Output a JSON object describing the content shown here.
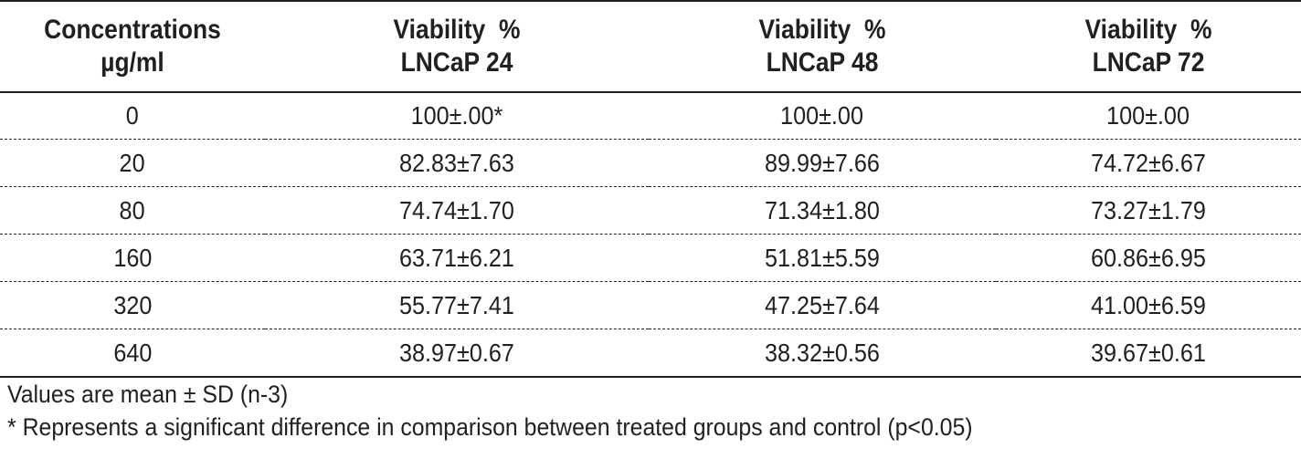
{
  "table": {
    "headers": [
      [
        "Concentrations",
        "µg/ml"
      ],
      [
        "Viability  %",
        "LNCaP 24"
      ],
      [
        "Viability  %",
        "LNCaP 48"
      ],
      [
        "Viability  %",
        "LNCaP 72"
      ]
    ],
    "rows": [
      [
        "0",
        "100±.00*",
        "100±.00",
        "100±.00"
      ],
      [
        "20",
        "82.83±7.63",
        "89.99±7.66",
        "74.72±6.67"
      ],
      [
        "80",
        "74.74±1.70",
        "71.34±1.80",
        "73.27±1.79"
      ],
      [
        "160",
        "63.71±6.21",
        "51.81±5.59",
        "60.86±6.95"
      ],
      [
        "320",
        "55.77±7.41",
        "47.25±7.64",
        "41.00±6.59"
      ],
      [
        "640",
        "38.97±0.67",
        "38.32±0.56",
        "39.67±0.61"
      ]
    ]
  },
  "notes": {
    "line1": "Values are mean ± SD (n-3)",
    "line2": "* Represents a significant difference in comparison between treated groups and control (p<0.05)"
  }
}
